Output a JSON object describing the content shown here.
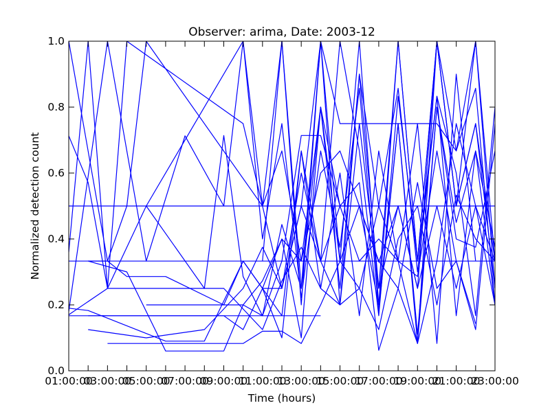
{
  "chart_data": {
    "type": "line",
    "title": "Observer: arima, Date: 2003-12",
    "xlabel": "Time (hours)",
    "ylabel": "Normalized detection count",
    "xlim": [
      1,
      23
    ],
    "ylim": [
      0,
      1
    ],
    "grid": false,
    "legend": "none",
    "line_color": "#0000ff",
    "x_ticks": [
      {
        "value": 1,
        "label": "01:00:00"
      },
      {
        "value": 3,
        "label": "03:00:00"
      },
      {
        "value": 5,
        "label": "05:00:00"
      },
      {
        "value": 7,
        "label": "07:00:00"
      },
      {
        "value": 9,
        "label": "09:00:00"
      },
      {
        "value": 11,
        "label": "11:00:00"
      },
      {
        "value": 13,
        "label": "13:00:00"
      },
      {
        "value": 15,
        "label": "15:00:00"
      },
      {
        "value": 17,
        "label": "17:00:00"
      },
      {
        "value": 19,
        "label": "19:00:00"
      },
      {
        "value": 21,
        "label": "21:00:00"
      },
      {
        "value": 23,
        "label": "23:00:00"
      }
    ],
    "x_ticks_minor": [
      2,
      4,
      6,
      8,
      10,
      12,
      14,
      16,
      18,
      20,
      22
    ],
    "y_ticks": [
      {
        "value": 0.0,
        "label": "0.0"
      },
      {
        "value": 0.2,
        "label": "0.2"
      },
      {
        "value": 0.4,
        "label": "0.4"
      },
      {
        "value": 0.6,
        "label": "0.6"
      },
      {
        "value": 0.8,
        "label": "0.8"
      },
      {
        "value": 1.0,
        "label": "1.0"
      }
    ],
    "series": [
      {
        "x": [
          1,
          2,
          3,
          11,
          12,
          13,
          14,
          15,
          16,
          17,
          18,
          19,
          20,
          21,
          22,
          23
        ],
        "y": [
          0.5,
          0.5,
          0.5,
          0.5,
          0.5,
          0.5,
          0.5,
          0.5,
          0.5,
          0.5,
          0.5,
          0.5,
          0.5,
          0.5,
          0.5,
          0.5
        ]
      },
      {
        "x": [
          1,
          3,
          8,
          11,
          12,
          13,
          14,
          15,
          16,
          17,
          18,
          19,
          20,
          21,
          22,
          23
        ],
        "y": [
          0.333,
          0.333,
          0.333,
          0.333,
          0.333,
          0.333,
          0.333,
          0.333,
          0.333,
          0.333,
          0.333,
          0.333,
          0.333,
          0.333,
          0.333,
          0.333
        ]
      },
      {
        "x": [
          1,
          2,
          5,
          9,
          11,
          12,
          13,
          14
        ],
        "y": [
          0.167,
          0.167,
          0.167,
          0.167,
          0.167,
          0.167,
          0.167,
          0.167
        ]
      },
      {
        "x": [
          1,
          3,
          4,
          5,
          11,
          12,
          13,
          14,
          15,
          16,
          17,
          18,
          19,
          20,
          21,
          22,
          23
        ],
        "y": [
          1.0,
          0.333,
          0.5,
          1.0,
          0.5,
          1.0,
          0.2,
          1.0,
          0.333,
          1.0,
          0.2,
          1.0,
          0.333,
          1.0,
          0.5,
          1.0,
          0.333
        ]
      },
      {
        "x": [
          1,
          2,
          3,
          5,
          8,
          9,
          10,
          11,
          12,
          13,
          14,
          15,
          16,
          17,
          18,
          19,
          20,
          21,
          22,
          23
        ],
        "y": [
          0.713,
          0.571,
          0.25,
          0.5,
          0.25,
          0.714,
          0.286,
          0.167,
          0.444,
          0.25,
          1.0,
          0.2,
          0.9,
          0.25,
          1.0,
          0.333,
          0.833,
          0.167,
          0.667,
          0.375
        ]
      },
      {
        "x": [
          1,
          2,
          3,
          4,
          10,
          11,
          12,
          13,
          14,
          15,
          16,
          17,
          18,
          19,
          20,
          21,
          22,
          23
        ],
        "y": [
          0.36,
          1.0,
          0.25,
          1.0,
          0.75,
          0.5,
          0.25,
          0.6,
          0.333,
          1.0,
          0.667,
          0.167,
          0.833,
          0.333,
          1.0,
          0.5,
          0.75,
          0.25
        ]
      },
      {
        "x": [
          1,
          3,
          5,
          7,
          9,
          10,
          11,
          12,
          13,
          14,
          15,
          16,
          17,
          18,
          19,
          20,
          21,
          22,
          23
        ],
        "y": [
          0.18,
          1.0,
          0.333,
          0.713,
          0.5,
          1.0,
          0.4,
          0.75,
          0.222,
          0.667,
          0.375,
          0.857,
          0.182,
          0.75,
          0.111,
          0.8,
          0.45,
          0.667,
          0.2
        ]
      },
      {
        "x": [
          1,
          2,
          6,
          8,
          10,
          11,
          12,
          13,
          14,
          15,
          16,
          17,
          18,
          19,
          20,
          21,
          22,
          23
        ],
        "y": [
          0.19,
          0.183,
          0.09,
          0.09,
          0.333,
          0.25,
          0.4,
          0.1,
          0.8,
          0.25,
          0.9,
          0.5,
          0.857,
          0.3,
          0.833,
          0.6,
          0.167,
          0.8
        ]
      },
      {
        "x": [
          1,
          3,
          6,
          9,
          11,
          12,
          13,
          14,
          15,
          16,
          17,
          18,
          19,
          20,
          21,
          22,
          23
        ],
        "y": [
          0.17,
          0.25,
          0.25,
          0.25,
          0.125,
          0.273,
          0.375,
          0.25,
          0.6,
          0.167,
          0.667,
          0.333,
          0.083,
          1.0,
          0.5,
          0.75,
          0.333
        ]
      },
      {
        "x": [
          2,
          5,
          8,
          10,
          11,
          12,
          13,
          14,
          15,
          16,
          17,
          18,
          19,
          20,
          21,
          22,
          23
        ],
        "y": [
          0.125,
          0.1,
          0.125,
          0.25,
          0.375,
          0.25,
          0.5,
          0.333,
          0.2,
          0.75,
          0.25,
          0.5,
          0.25,
          1.0,
          0.667,
          0.857,
          0.2
        ]
      },
      {
        "x": [
          3,
          4,
          7,
          10,
          11,
          12,
          13,
          14,
          15,
          16,
          17,
          18,
          19,
          20,
          21,
          22,
          23
        ],
        "y": [
          0.083,
          0.083,
          0.083,
          0.083,
          0.12,
          0.12,
          0.083,
          0.2,
          0.333,
          0.5,
          0.2,
          0.75,
          0.083,
          0.333,
          0.75,
          0.5,
          0.2
        ]
      },
      {
        "x": [
          2,
          3,
          4,
          6,
          9,
          10,
          11,
          12,
          13,
          14,
          15,
          16,
          17,
          18,
          19,
          20,
          21,
          22,
          23
        ],
        "y": [
          0.333,
          0.333,
          0.286,
          0.286,
          0.2,
          0.333,
          0.25,
          0.167,
          0.667,
          0.25,
          0.2,
          0.25,
          0.125,
          0.4,
          0.5,
          0.2,
          0.533,
          0.4,
          0.333
        ]
      },
      {
        "x": [
          2,
          4,
          6,
          9,
          10,
          11,
          12,
          13,
          14,
          15,
          16,
          17,
          18,
          19,
          20,
          21,
          22,
          23
        ],
        "y": [
          0.333,
          0.3,
          0.06,
          0.06,
          0.2,
          0.167,
          0.333,
          0.714,
          0.714,
          0.5,
          0.5,
          0.33,
          0.5,
          0.25,
          0.5,
          0.25,
          0.5,
          0.333
        ]
      },
      {
        "x": [
          5,
          10,
          11,
          12,
          13,
          14,
          15,
          16,
          17,
          18,
          19,
          20,
          21,
          22,
          23
        ],
        "y": [
          0.2,
          0.2,
          0.273,
          0.4,
          0.333,
          0.6,
          0.667,
          0.5,
          0.333,
          0.25,
          0.571,
          0.25,
          0.333,
          0.125,
          0.75
        ]
      },
      {
        "x": [
          5,
          10,
          11,
          12,
          13,
          14,
          15,
          16,
          17,
          18,
          19,
          20,
          21,
          22,
          23
        ],
        "y": [
          0.5,
          1.0,
          0.5,
          0.667,
          0.333,
          0.8,
          0.5,
          0.571,
          0.062,
          0.25,
          0.083,
          0.8,
          0.4,
          0.375,
          0.667
        ]
      },
      {
        "x": [
          2,
          4,
          7,
          9,
          10,
          11,
          12,
          13,
          14,
          15,
          16,
          17,
          18,
          19,
          20,
          21,
          22
        ],
        "y": [
          0.167,
          0.167,
          0.167,
          0.167,
          0.125,
          0.25,
          0.1,
          0.667,
          0.333,
          0.5,
          0.333,
          0.4,
          0.333,
          0.75,
          0.083,
          0.9,
          0.333
        ]
      },
      {
        "x": [
          11,
          12,
          13,
          14,
          15,
          16,
          17,
          18,
          19,
          20,
          21,
          22
        ],
        "y": [
          0.333,
          1.0,
          0.25,
          0.8,
          0.333,
          0.25,
          0.5,
          0.333,
          0.286,
          0.667,
          0.333,
          0.143
        ]
      },
      {
        "x": [
          11,
          12,
          13,
          14,
          15,
          16,
          17,
          18,
          19,
          20,
          21,
          22,
          23
        ],
        "y": [
          0.25,
          0.25,
          0.5,
          1.0,
          0.75,
          0.75,
          0.75,
          0.75,
          0.75,
          0.75,
          0.667,
          1.0,
          0.25
        ]
      }
    ]
  }
}
